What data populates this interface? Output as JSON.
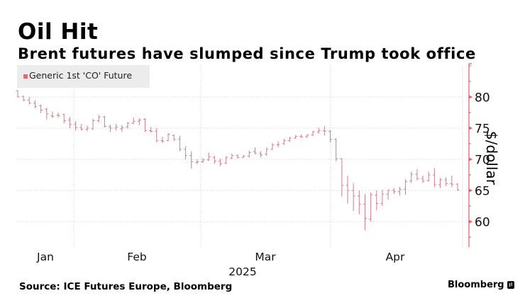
{
  "header": {
    "title": "Oil Hit",
    "subtitle": "Brent futures have slumped since Trump took office"
  },
  "footer": {
    "source": "Source: ICE Futures Europe, Bloomberg",
    "brand": "Bloomberg"
  },
  "colors": {
    "series": "#e8676f",
    "bar": "#c9808e",
    "axis": "#e8575f",
    "grid": "#cccccc",
    "legend_bg": "#ececec"
  },
  "chart_data": {
    "type": "ohlc",
    "title": "Oil Hit",
    "subtitle": "Brent futures have slumped since Trump took office",
    "xlabel": "2025",
    "ylabel": "$/dollar",
    "ylim": [
      56,
      85
    ],
    "yticks": [
      60,
      65,
      70,
      75,
      80
    ],
    "xtick_labels": [
      "Jan",
      "Feb",
      "Mar",
      "Apr"
    ],
    "year_label": "2025",
    "grid": true,
    "legend": {
      "position": "top-left",
      "entries": [
        "Generic 1st 'CO' Future"
      ]
    },
    "y_axis_side": "right",
    "series": [
      {
        "name": "Generic 1st 'CO' Future",
        "bars": [
          [
            81.0,
            81.1,
            79.9,
            80.0
          ],
          [
            80.1,
            80.2,
            79.3,
            79.5
          ],
          [
            79.5,
            80.0,
            78.8,
            79.0
          ],
          [
            79.0,
            79.5,
            78.2,
            78.5
          ],
          [
            78.6,
            78.8,
            77.4,
            77.9
          ],
          [
            78.0,
            78.3,
            76.4,
            77.3
          ],
          [
            77.0,
            77.7,
            76.6,
            76.9
          ],
          [
            77.1,
            77.5,
            76.7,
            77.0
          ],
          [
            77.2,
            77.3,
            75.8,
            76.2
          ],
          [
            76.3,
            76.8,
            75.0,
            75.6
          ],
          [
            75.6,
            76.1,
            74.6,
            75.1
          ],
          [
            75.1,
            75.7,
            74.6,
            74.8
          ],
          [
            74.8,
            75.4,
            74.5,
            75.0
          ],
          [
            74.9,
            76.5,
            74.7,
            76.2
          ],
          [
            76.2,
            77.1,
            75.9,
            76.8
          ],
          [
            76.8,
            77.0,
            75.1,
            75.3
          ],
          [
            75.2,
            75.6,
            74.4,
            75.0
          ],
          [
            75.0,
            75.7,
            74.6,
            75.2
          ],
          [
            74.9,
            75.5,
            74.4,
            75.1
          ],
          [
            75.2,
            76.0,
            74.9,
            75.8
          ],
          [
            75.8,
            76.7,
            75.6,
            76.1
          ],
          [
            76.1,
            76.6,
            75.5,
            76.3
          ],
          [
            76.4,
            76.6,
            74.4,
            74.6
          ],
          [
            74.6,
            75.2,
            74.3,
            74.5
          ],
          [
            74.5,
            75.0,
            72.7,
            73.0
          ],
          [
            73.0,
            73.6,
            72.6,
            72.9
          ],
          [
            73.0,
            74.2,
            72.9,
            74.0
          ],
          [
            73.8,
            74.0,
            72.9,
            73.2
          ],
          [
            73.2,
            73.8,
            71.3,
            71.6
          ],
          [
            71.6,
            72.1,
            70.0,
            70.6
          ],
          [
            70.6,
            71.3,
            68.5,
            69.6
          ],
          [
            69.5,
            70.0,
            69.2,
            69.6
          ],
          [
            69.6,
            70.2,
            69.4,
            69.9
          ],
          [
            69.9,
            71.1,
            69.7,
            70.4
          ],
          [
            70.3,
            70.6,
            69.3,
            69.7
          ],
          [
            69.7,
            70.1,
            68.9,
            69.3
          ],
          [
            69.4,
            70.5,
            69.2,
            70.3
          ],
          [
            70.2,
            70.9,
            70.0,
            70.6
          ],
          [
            70.6,
            70.8,
            70.1,
            70.3
          ],
          [
            70.3,
            70.7,
            70.2,
            70.5
          ],
          [
            70.5,
            71.4,
            70.3,
            71.1
          ],
          [
            71.2,
            71.9,
            70.8,
            71.0
          ],
          [
            70.9,
            71.3,
            70.3,
            70.7
          ],
          [
            70.8,
            71.9,
            70.6,
            71.6
          ],
          [
            71.6,
            72.6,
            71.5,
            72.3
          ],
          [
            72.3,
            72.9,
            71.9,
            72.4
          ],
          [
            72.5,
            73.3,
            72.3,
            73.0
          ],
          [
            73.0,
            73.6,
            72.8,
            73.4
          ],
          [
            73.4,
            73.9,
            73.3,
            73.7
          ],
          [
            73.7,
            74.0,
            73.4,
            73.6
          ],
          [
            73.7,
            74.0,
            73.4,
            73.9
          ],
          [
            73.9,
            74.6,
            73.7,
            74.4
          ],
          [
            74.4,
            75.1,
            74.1,
            74.6
          ],
          [
            74.6,
            75.3,
            73.8,
            74.5
          ],
          [
            74.5,
            74.7,
            72.7,
            73.2
          ],
          [
            73.2,
            73.4,
            69.7,
            70.1
          ],
          [
            70.1,
            70.2,
            64.0,
            65.8
          ],
          [
            65.8,
            67.4,
            62.9,
            65.0
          ],
          [
            65.0,
            66.2,
            61.7,
            64.1
          ],
          [
            64.1,
            65.0,
            61.2,
            62.8
          ],
          [
            62.8,
            64.4,
            58.6,
            60.5
          ],
          [
            60.4,
            64.7,
            60.0,
            64.3
          ],
          [
            64.2,
            65.0,
            61.8,
            62.9
          ],
          [
            62.9,
            65.1,
            62.5,
            64.4
          ],
          [
            64.4,
            65.2,
            63.5,
            65.0
          ],
          [
            65.0,
            65.4,
            64.4,
            64.8
          ],
          [
            64.8,
            65.6,
            64.2,
            65.2
          ],
          [
            65.2,
            66.8,
            64.3,
            66.4
          ],
          [
            66.5,
            68.0,
            66.2,
            67.6
          ],
          [
            67.6,
            68.4,
            66.6,
            66.9
          ],
          [
            66.9,
            67.4,
            66.2,
            66.5
          ],
          [
            66.6,
            68.0,
            66.4,
            67.5
          ],
          [
            67.5,
            68.6,
            65.5,
            65.9
          ],
          [
            65.9,
            67.0,
            65.4,
            66.7
          ],
          [
            66.7,
            67.1,
            65.7,
            66.1
          ],
          [
            66.1,
            67.4,
            65.5,
            66.0
          ],
          [
            66.0,
            66.2,
            64.9,
            65.1
          ]
        ]
      }
    ]
  }
}
